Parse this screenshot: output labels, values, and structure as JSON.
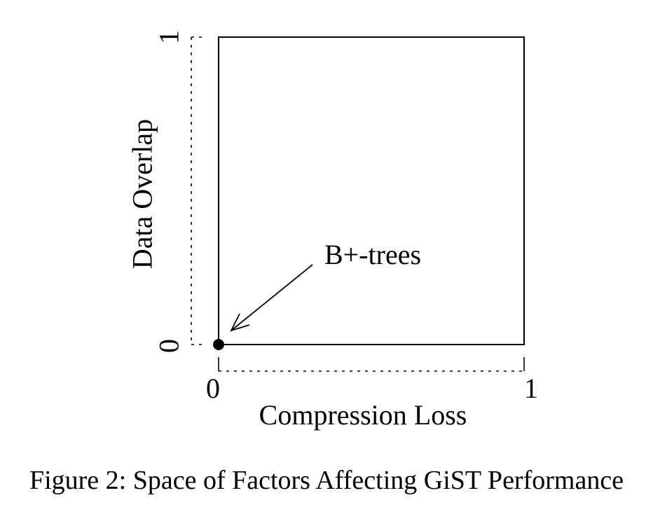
{
  "figure": {
    "caption": "Figure 2: Space of Factors Affecting GiST Performance"
  },
  "chart_data": {
    "type": "scatter",
    "xlabel": "Compression Loss",
    "ylabel": "Data Overlap",
    "xlim": [
      0,
      1
    ],
    "ylim": [
      0,
      1
    ],
    "x_ticks": [
      "0",
      "1"
    ],
    "y_ticks": [
      "0",
      "1"
    ],
    "grid": false,
    "points": [
      {
        "x": 0,
        "y": 0,
        "label": "B+-trees"
      }
    ],
    "annotations": [
      {
        "text": "B+-trees",
        "points_to": {
          "x": 0,
          "y": 0
        }
      }
    ],
    "colors": {
      "ink": "#000000",
      "background": "#ffffff"
    }
  }
}
